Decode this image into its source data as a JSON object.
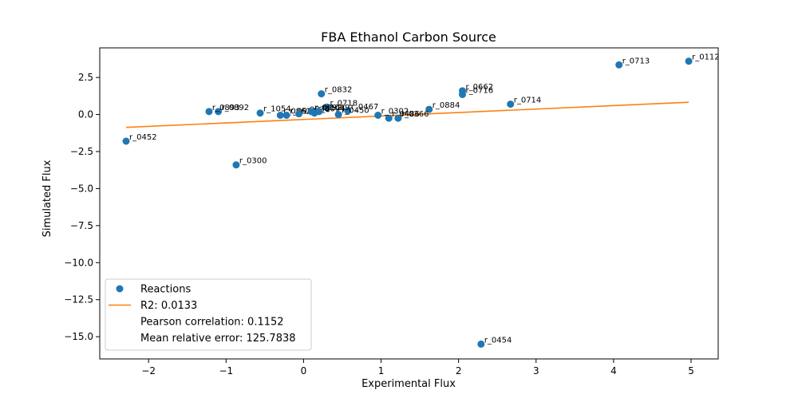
{
  "chart_data": {
    "type": "scatter",
    "title": "FBA Ethanol Carbon Source",
    "xlabel": "Experimental Flux",
    "ylabel": "Simulated Flux",
    "xlim": [
      -2.63,
      5.35
    ],
    "ylim": [
      -16.5,
      4.5
    ],
    "grid": false,
    "legend_position": "lower-left",
    "xticks": [
      -2,
      -1,
      0,
      1,
      2,
      3,
      4,
      5
    ],
    "yticks": [
      2.5,
      0.0,
      -2.5,
      -5.0,
      -7.5,
      -10.0,
      -12.5,
      -15.0
    ],
    "ytick_labels": [
      "2.5",
      "0.0",
      "−2.5",
      "−5.0",
      "−7.5",
      "−10.0",
      "−12.5",
      "−15.0"
    ],
    "xtick_labels": [
      "−2",
      "−1",
      "0",
      "1",
      "2",
      "3",
      "4",
      "5"
    ],
    "points": [
      {
        "label": "r_0112",
        "x": 4.97,
        "y": 3.6
      },
      {
        "label": "r_0713",
        "x": 4.07,
        "y": 3.35
      },
      {
        "label": "r_0662",
        "x": 2.05,
        "y": 1.6
      },
      {
        "label": "r_0716",
        "x": 2.05,
        "y": 1.35
      },
      {
        "label": "r_0714",
        "x": 2.67,
        "y": 0.7
      },
      {
        "label": "r_0884",
        "x": 1.62,
        "y": 0.35
      },
      {
        "label": "r_0832",
        "x": 0.23,
        "y": 1.4
      },
      {
        "label": "r_0718",
        "x": 0.3,
        "y": 0.5
      },
      {
        "label": "r_0467",
        "x": 0.57,
        "y": 0.25
      },
      {
        "label": "r_0450",
        "x": 0.45,
        "y": 0.0
      },
      {
        "label": "r_0486",
        "x": 1.1,
        "y": -0.25
      },
      {
        "label": "r_0366",
        "x": 1.22,
        "y": -0.25
      },
      {
        "label": "r_0892",
        "x": -1.1,
        "y": 0.2
      },
      {
        "label": "r_0893",
        "x": -1.22,
        "y": 0.2
      },
      {
        "label": "r_1054",
        "x": -0.56,
        "y": 0.1
      },
      {
        "label": "r_0962",
        "x": -0.3,
        "y": -0.05
      },
      {
        "label": "r_0961",
        "x": -0.22,
        "y": -0.05
      },
      {
        "label": "r_0534",
        "x": -0.06,
        "y": 0.05
      },
      {
        "label": "r_0092",
        "x": 0.1,
        "y": 0.2
      },
      {
        "label": "r_0094",
        "x": 0.14,
        "y": 0.1
      },
      {
        "label": "r_1049",
        "x": 0.2,
        "y": 0.2
      },
      {
        "label": "r_0302",
        "x": 0.96,
        "y": -0.05
      },
      {
        "label": "r_0452",
        "x": -2.29,
        "y": -1.8
      },
      {
        "label": "r_0300",
        "x": -0.87,
        "y": -3.4
      },
      {
        "label": "r_0454",
        "x": 2.29,
        "y": -15.5
      }
    ],
    "fit_line": {
      "x": [
        -2.29,
        4.97
      ],
      "y": [
        -0.87,
        0.83
      ]
    },
    "legend": [
      {
        "label": "Reactions",
        "marker": "circle"
      },
      {
        "label": "R2: 0.0133",
        "marker": "line"
      },
      {
        "label": "Pearson correlation: 0.1152",
        "marker": "none"
      },
      {
        "label": "Mean relative error: 125.7838",
        "marker": "none"
      }
    ],
    "colors": {
      "points": "#1f77b4",
      "fit": "#ff7f0e",
      "axes": "#000000",
      "legend_frame": "#cccccc"
    }
  }
}
